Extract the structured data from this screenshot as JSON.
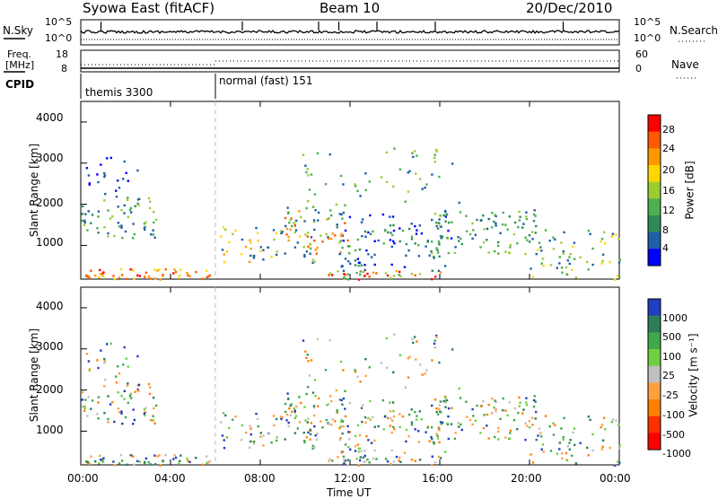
{
  "header": {
    "station": "Syowa East (fitACF)",
    "beam": "Beam 10",
    "date": "20/Dec/2010"
  },
  "top_panel": {
    "left_label": "N.Sky",
    "right_label": "N.Search",
    "left_ticks": [
      "10^5",
      "10^0"
    ],
    "right_ticks": [
      "10^5",
      "10^0"
    ]
  },
  "freq_panel": {
    "left_label_1": "Freq.",
    "left_label_2": "[MHz]",
    "left_ticks": [
      "18",
      "8"
    ],
    "right_ticks": [
      "60",
      "0"
    ],
    "right_label": "Nave"
  },
  "cpid_panel": {
    "label": "CPID",
    "segments": [
      {
        "name": "themis 3300",
        "start_hour": 0
      },
      {
        "name": "normal (fast) 151",
        "start_hour": 6
      }
    ]
  },
  "chart_data": [
    {
      "type": "heatmap",
      "title": "",
      "xlabel": "",
      "ylabel": "Slant Range [km]",
      "x_range_hours": [
        0,
        24
      ],
      "ylim": [
        180,
        4500
      ],
      "y_ticks": [
        "1000",
        "2000",
        "3000",
        "4000"
      ],
      "colorbar": {
        "label": "Power [dB]",
        "ticks": [
          "28",
          "24",
          "20",
          "16",
          "12",
          "8",
          "4"
        ],
        "colors": [
          "#ff0000",
          "#ff5a00",
          "#ff9900",
          "#ffd700",
          "#9acd32",
          "#4caf50",
          "#2e8b57",
          "#1f5fa8",
          "#0000ff"
        ]
      }
    },
    {
      "type": "heatmap",
      "title": "",
      "xlabel": "Time UT",
      "ylabel": "Slant Range [km]",
      "x_range_hours": [
        0,
        24
      ],
      "x_ticks": [
        "00:00",
        "04:00",
        "08:00",
        "12:00",
        "16:00",
        "20:00",
        "00:00"
      ],
      "ylim": [
        180,
        4500
      ],
      "y_ticks": [
        "1000",
        "2000",
        "3000",
        "4000"
      ],
      "colorbar": {
        "label": "Velocity [m s⁻¹]",
        "ticks": [
          "1000",
          "500",
          "100",
          "25",
          "-25",
          "-100",
          "-500",
          "-1000"
        ],
        "colors": [
          "#2040c0",
          "#2e7d5a",
          "#3fa84a",
          "#6ed040",
          "#c0c0c0",
          "#ffa040",
          "#ff8000",
          "#ff3000",
          "#ff0000"
        ]
      }
    }
  ]
}
